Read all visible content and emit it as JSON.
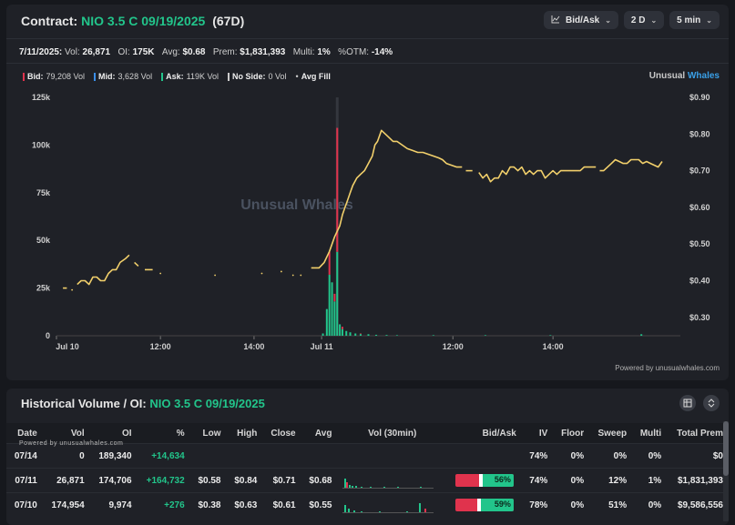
{
  "header": {
    "label": "Contract:",
    "contract": "NIO 3.5 C 09/19/2025",
    "dte": "(67D)",
    "buttons": [
      {
        "icon": "chart-line-icon",
        "label": "Bid/Ask"
      },
      {
        "label": "2 D"
      },
      {
        "label": "5 min"
      }
    ]
  },
  "stats": {
    "date": "7/11/2025:",
    "vol_label": "Vol:",
    "vol": "26,871",
    "oi_label": "OI:",
    "oi": "175K",
    "avg_label": "Avg:",
    "avg": "$0.68",
    "prem_label": "Prem:",
    "prem": "$1,831,393",
    "multi_label": "Multi:",
    "multi": "1%",
    "otm_label": "%OTM:",
    "otm": "-14%"
  },
  "legend": {
    "bid": {
      "label": "Bid:",
      "value": "79,208 Vol",
      "color": "#e0334d"
    },
    "mid": {
      "label": "Mid:",
      "value": "3,628 Vol",
      "color": "#3a8ee8"
    },
    "ask": {
      "label": "Ask:",
      "value": "119K Vol",
      "color": "#22c58b"
    },
    "noside": {
      "label": "No Side:",
      "value": "0 Vol",
      "color": "#cccccc"
    },
    "avgfill": {
      "label": "Avg Fill"
    }
  },
  "brand": {
    "a": "Unusual ",
    "b": "Whales"
  },
  "watermark": "Unusual Whales",
  "powered": "Powered by unusualwhales.com",
  "chart_data": {
    "type": "line",
    "x_ticks": [
      "Jul 10",
      "12:00",
      "14:00",
      "Jul 11",
      "12:00",
      "14:00"
    ],
    "y_left_ticks": [
      "0",
      "25k",
      "50k",
      "75k",
      "100k",
      "125k"
    ],
    "y_left_range": [
      0,
      125000
    ],
    "y_right_ticks": [
      "$0.30",
      "$0.40",
      "$0.50",
      "$0.60",
      "$0.70",
      "$0.80",
      "$0.90"
    ],
    "y_right_range": [
      0.25,
      0.9
    ],
    "series": [
      {
        "name": "Avg Fill",
        "color": "#f2d06b",
        "segments": [
          [
            [
              0.5,
              0.38
            ],
            [
              0.8,
              0.38
            ]
          ],
          [
            [
              1.2,
              0.375
            ]
          ],
          [
            [
              1.6,
              0.39
            ],
            [
              1.9,
              0.4
            ],
            [
              2.2,
              0.4
            ],
            [
              2.5,
              0.39
            ],
            [
              2.8,
              0.41
            ],
            [
              3.1,
              0.41
            ],
            [
              3.4,
              0.4
            ],
            [
              3.7,
              0.4
            ],
            [
              4.0,
              0.42
            ],
            [
              4.3,
              0.43
            ],
            [
              4.6,
              0.43
            ],
            [
              4.9,
              0.45
            ],
            [
              5.3,
              0.46
            ],
            [
              5.6,
              0.47
            ]
          ],
          [
            [
              6.0,
              0.45
            ],
            [
              6.3,
              0.44
            ]
          ],
          [
            [
              6.8,
              0.43
            ],
            [
              7.4,
              0.43
            ]
          ],
          [
            [
              8.0,
              0.42
            ]
          ],
          [
            [
              12.2,
              0.415
            ]
          ],
          [
            [
              15.8,
              0.42
            ]
          ],
          [
            [
              17.3,
              0.425
            ]
          ],
          [
            [
              18.2,
              0.415
            ]
          ],
          [
            [
              18.8,
              0.415
            ]
          ],
          [
            [
              19.6,
              0.435
            ],
            [
              20.2,
              0.435
            ],
            [
              20.6,
              0.45
            ],
            [
              21.0,
              0.48
            ],
            [
              21.4,
              0.52
            ],
            [
              21.8,
              0.55
            ],
            [
              22.0,
              0.58
            ],
            [
              22.2,
              0.6
            ],
            [
              22.4,
              0.62
            ],
            [
              22.6,
              0.64
            ],
            [
              22.8,
              0.66
            ],
            [
              23.1,
              0.68
            ],
            [
              23.4,
              0.69
            ],
            [
              23.7,
              0.7
            ],
            [
              24.0,
              0.72
            ],
            [
              24.3,
              0.74
            ],
            [
              24.5,
              0.77
            ],
            [
              24.7,
              0.78
            ],
            [
              25.0,
              0.81
            ],
            [
              25.3,
              0.8
            ],
            [
              25.6,
              0.79
            ],
            [
              25.9,
              0.78
            ],
            [
              26.2,
              0.78
            ],
            [
              26.6,
              0.77
            ],
            [
              27.0,
              0.76
            ],
            [
              27.4,
              0.755
            ],
            [
              27.8,
              0.75
            ],
            [
              28.2,
              0.75
            ],
            [
              28.6,
              0.745
            ],
            [
              29.0,
              0.74
            ],
            [
              29.4,
              0.735
            ],
            [
              29.7,
              0.73
            ],
            [
              30.0,
              0.72
            ],
            [
              30.4,
              0.715
            ],
            [
              30.8,
              0.71
            ],
            [
              31.2,
              0.71
            ]
          ],
          [
            [
              31.5,
              0.7
            ],
            [
              32.0,
              0.7
            ]
          ],
          [
            [
              32.5,
              0.695
            ],
            [
              32.8,
              0.68
            ],
            [
              33.1,
              0.69
            ],
            [
              33.4,
              0.67
            ],
            [
              33.7,
              0.68
            ],
            [
              34.0,
              0.68
            ],
            [
              34.3,
              0.7
            ],
            [
              34.6,
              0.69
            ],
            [
              34.9,
              0.71
            ],
            [
              35.2,
              0.71
            ],
            [
              35.5,
              0.7
            ],
            [
              35.8,
              0.71
            ],
            [
              36.1,
              0.69
            ],
            [
              36.4,
              0.7
            ],
            [
              36.7,
              0.69
            ],
            [
              37.0,
              0.7
            ],
            [
              37.3,
              0.7
            ],
            [
              37.6,
              0.68
            ],
            [
              37.9,
              0.69
            ],
            [
              38.2,
              0.7
            ],
            [
              38.5,
              0.69
            ],
            [
              38.8,
              0.7
            ],
            [
              39.1,
              0.7
            ],
            [
              39.4,
              0.7
            ],
            [
              39.7,
              0.7
            ],
            [
              40.0,
              0.7
            ],
            [
              40.3,
              0.7
            ],
            [
              40.6,
              0.71
            ],
            [
              40.9,
              0.71
            ],
            [
              41.2,
              0.71
            ],
            [
              41.5,
              0.71
            ]
          ],
          [
            [
              41.8,
              0.7
            ],
            [
              42.1,
              0.7
            ],
            [
              42.4,
              0.71
            ],
            [
              42.7,
              0.72
            ],
            [
              43.0,
              0.73
            ],
            [
              43.3,
              0.725
            ],
            [
              43.6,
              0.72
            ],
            [
              43.9,
              0.72
            ],
            [
              44.2,
              0.73
            ],
            [
              44.5,
              0.73
            ],
            [
              44.8,
              0.73
            ],
            [
              45.1,
              0.72
            ],
            [
              45.4,
              0.725
            ],
            [
              45.7,
              0.72
            ],
            [
              46.0,
              0.715
            ],
            [
              46.3,
              0.71
            ],
            [
              46.6,
              0.725
            ]
          ]
        ]
      }
    ],
    "volume_bars": [
      {
        "x": 20.5,
        "ask": 1200,
        "bid": 0
      },
      {
        "x": 20.8,
        "ask": 14000,
        "bid": 0
      },
      {
        "x": 21.0,
        "ask": 32000,
        "bid": 12000
      },
      {
        "x": 21.2,
        "ask": 28000,
        "bid": 0
      },
      {
        "x": 21.4,
        "ask": 18000,
        "bid": 4000
      },
      {
        "x": 21.6,
        "ask": 44000,
        "bid": 65000
      },
      {
        "x": 21.8,
        "ask": 6000,
        "bid": 0
      },
      {
        "x": 22.0,
        "ask": 3500,
        "bid": 1200
      },
      {
        "x": 22.3,
        "ask": 2500,
        "bid": 0
      },
      {
        "x": 22.6,
        "ask": 1800,
        "bid": 0
      },
      {
        "x": 23.0,
        "ask": 1200,
        "bid": 0
      },
      {
        "x": 23.4,
        "ask": 900,
        "bid": 300
      },
      {
        "x": 24.0,
        "ask": 800,
        "bid": 0
      },
      {
        "x": 24.6,
        "ask": 500,
        "bid": 0
      },
      {
        "x": 25.4,
        "ask": 400,
        "bid": 0
      },
      {
        "x": 26.2,
        "ask": 300,
        "bid": 0
      },
      {
        "x": 29.0,
        "ask": 300,
        "bid": 0
      },
      {
        "x": 33.0,
        "ask": 300,
        "bid": 0
      },
      {
        "x": 38.0,
        "ask": 300,
        "bid": 0
      },
      {
        "x": 45.0,
        "ask": 800,
        "bid": 0
      }
    ],
    "x_range": [
      0,
      48
    ],
    "x_tick_positions": [
      0,
      8,
      15.2,
      20.4,
      30.5,
      38.2
    ],
    "grid": true,
    "legend_placement": "top-left"
  },
  "historical": {
    "title": "Historical Volume / OI:",
    "contract": "NIO 3.5 C 09/19/2025",
    "powered": "Powered by unusualwhales.com",
    "columns": [
      "Date",
      "Vol",
      "OI",
      "%",
      "Low",
      "High",
      "Close",
      "Avg",
      "Vol (30min)",
      "Bid/Ask",
      "IV",
      "Floor",
      "Sweep",
      "Multi",
      "Total Prem"
    ],
    "rows": [
      {
        "date": "07/14",
        "vol": "0",
        "oi": "189,340",
        "chg": "+14,634",
        "low": "",
        "high": "",
        "close": "",
        "avg": "",
        "ask_pct": "",
        "iv": "74%",
        "floor": "0%",
        "sweep": "0%",
        "multi": "0%",
        "prem": "$0"
      },
      {
        "date": "07/11",
        "vol": "26,871",
        "oi": "174,706",
        "chg": "+164,732",
        "low": "$0.58",
        "high": "$0.84",
        "close": "$0.71",
        "avg": "$0.68",
        "ask_pct": "56%",
        "ask_frac": 0.56,
        "iv": "74%",
        "floor": "0%",
        "sweep": "12%",
        "multi": "1%",
        "prem": "$1,831,393"
      },
      {
        "date": "07/10",
        "vol": "174,954",
        "oi": "9,974",
        "chg": "+276",
        "low": "$0.38",
        "high": "$0.63",
        "close": "$0.61",
        "avg": "$0.55",
        "ask_pct": "59%",
        "ask_frac": 0.59,
        "iv": "78%",
        "floor": "0%",
        "sweep": "51%",
        "multi": "0%",
        "prem": "$9,586,556"
      }
    ]
  }
}
